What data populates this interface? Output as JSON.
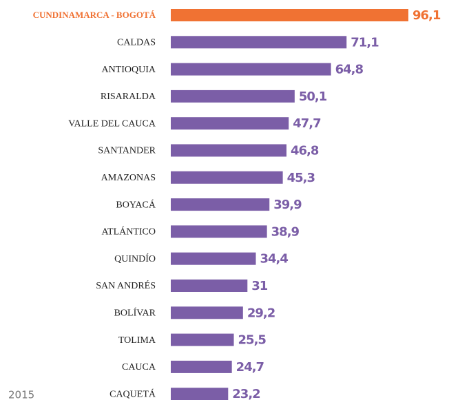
{
  "chart_data": {
    "type": "barh",
    "categories": [
      "CUNDINAMARCA - BOGOTÁ",
      "CALDAS",
      "ANTIOQUIA",
      "RISARALDA",
      "VALLE DEL CAUCA",
      "SANTANDER",
      "AMAZONAS",
      "BOYACÁ",
      "ATLÁNTICO",
      "QUINDÍO",
      "SAN ANDRÉS",
      "BOLÍVAR",
      "TOLIMA",
      "CAUCA",
      "CAQUETÁ"
    ],
    "values": [
      96.1,
      71.1,
      64.8,
      50.1,
      47.7,
      46.8,
      45.3,
      39.9,
      38.9,
      34.4,
      31,
      29.2,
      25.5,
      24.7,
      23.2
    ],
    "value_labels": [
      "96,1",
      "71,1",
      "64,8",
      "50,1",
      "47,7",
      "46,8",
      "45,3",
      "39,9",
      "38,9",
      "34,4",
      "31",
      "29,2",
      "25,5",
      "24,7",
      "23,2"
    ],
    "colors": [
      "#f07233",
      "#7b5ea7",
      "#7b5ea7",
      "#7b5ea7",
      "#7b5ea7",
      "#7b5ea7",
      "#7b5ea7",
      "#7b5ea7",
      "#7b5ea7",
      "#7b5ea7",
      "#7b5ea7",
      "#7b5ea7",
      "#7b5ea7",
      "#7b5ea7",
      "#7b5ea7"
    ],
    "annotation": "2015"
  }
}
